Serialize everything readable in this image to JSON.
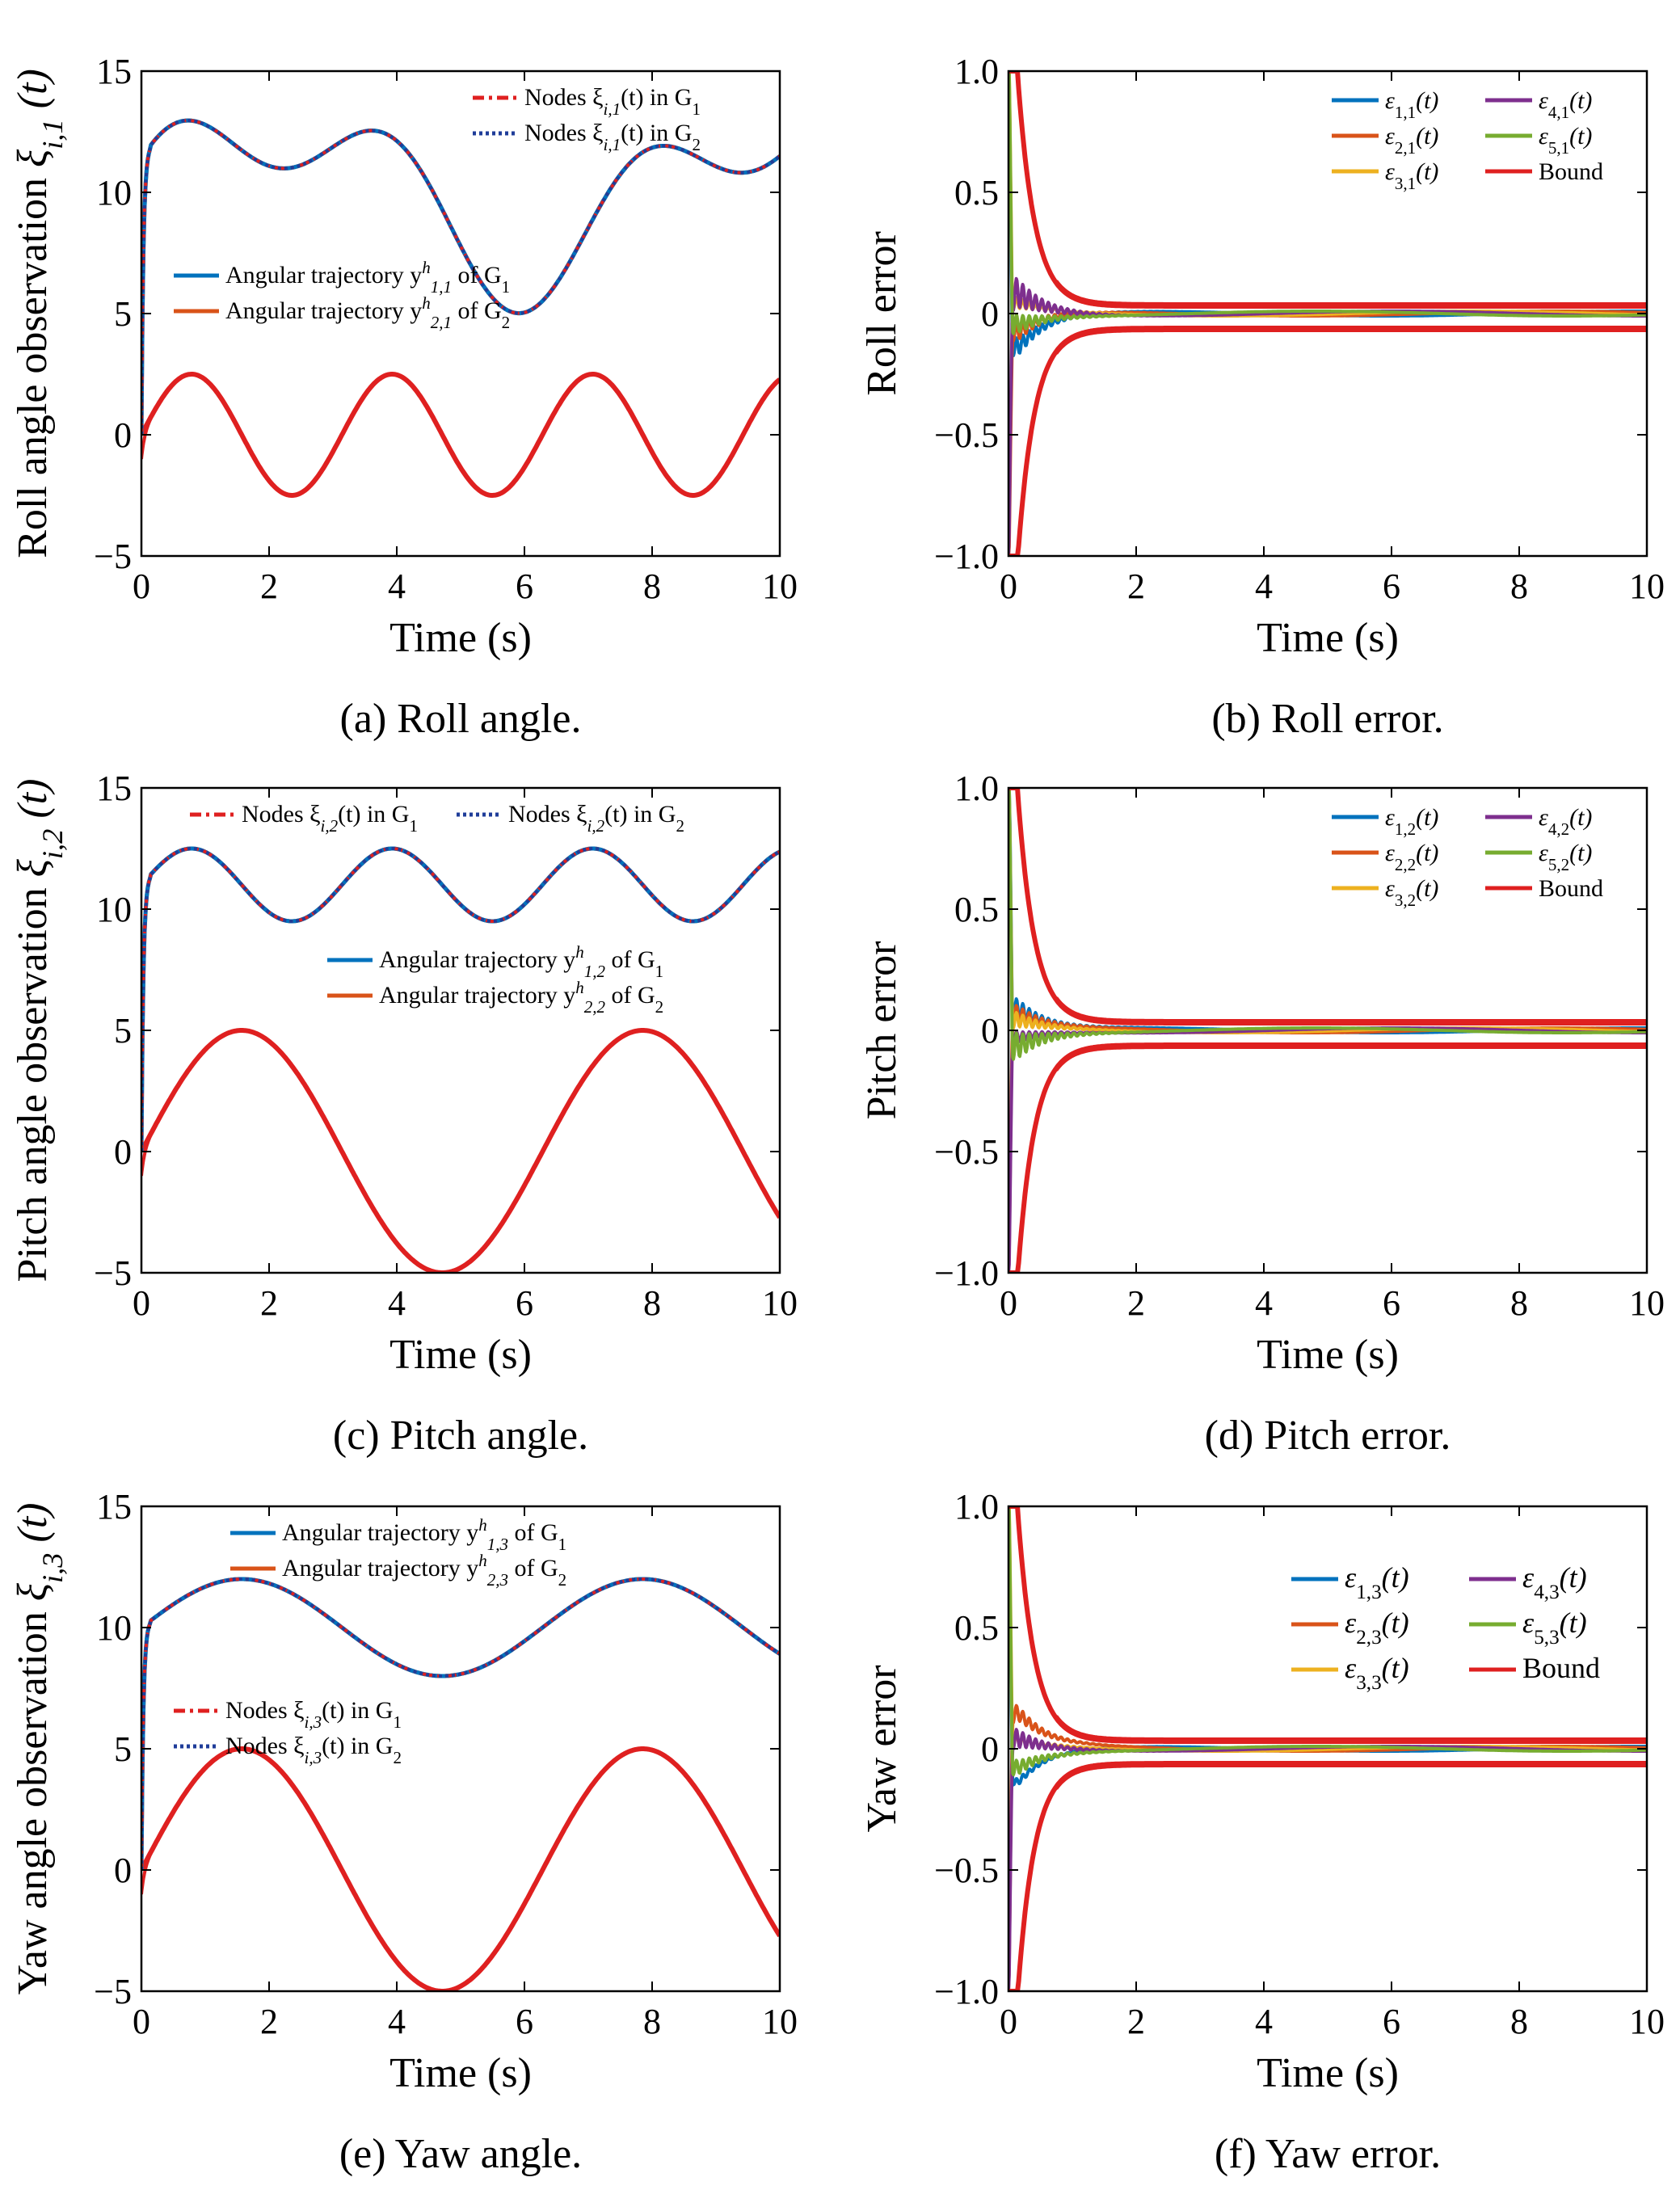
{
  "colors": {
    "blue": "#0072BD",
    "orange": "#D95319",
    "yellow": "#EDB120",
    "purple": "#7E2F8E",
    "green": "#77AC30",
    "red": "#DF2020",
    "navy": "#1F3D99"
  },
  "chart_data": [
    {
      "id": "a",
      "type": "line",
      "caption": "(a) Roll angle.",
      "xlabel": "Time (s)",
      "ylabel": "Roll angle observation",
      "ylabel_symbol": "ξ",
      "ylabel_sub": "i,1",
      "ylabel_arg": "(t)",
      "xlim": [
        0,
        10
      ],
      "ylim": [
        -5,
        15
      ],
      "xticks": [
        "0",
        "2",
        "4",
        "6",
        "8",
        "10"
      ],
      "yticks": [
        "−5",
        "0",
        "5",
        "10",
        "15"
      ],
      "traj": {
        "offset": 10,
        "terms": [
          [
            3.0,
            0.8,
            -0.1
          ],
          [
            2.0,
            1.7,
            1.0
          ]
        ]
      },
      "sig": {
        "offset": 0,
        "terms": [
          [
            2.5,
            2.0,
            0.0
          ]
        ]
      },
      "legends": [
        {
          "entries": [
            {
              "color": "red",
              "style": "dashdot",
              "text": "Nodes ξ",
              "sub": "i,1",
              "tail": "(t) in G",
              "tsub": "1"
            },
            {
              "color": "navy",
              "style": "dotted",
              "text": "Nodes ξ",
              "sub": "i,1",
              "tail": "(t) in G",
              "tsub": "2"
            }
          ]
        },
        {
          "entries": [
            {
              "color": "blue",
              "style": "solid",
              "text": "Angular trajectory y",
              "sup": "h",
              "sub": "1,1",
              "tail": " of G",
              "tsub": "1"
            },
            {
              "color": "orange",
              "style": "solid",
              "text": "Angular trajectory y",
              "sup": "h",
              "sub": "2,1",
              "tail": " of G",
              "tsub": "2"
            }
          ]
        }
      ]
    },
    {
      "id": "b",
      "type": "line",
      "caption": "(b) Roll error.",
      "xlabel": "Time (s)",
      "ylabel": "Roll error",
      "xlim": [
        0,
        10
      ],
      "ylim": [
        -1.0,
        1.0
      ],
      "xticks": [
        "0",
        "2",
        "4",
        "6",
        "8",
        "10"
      ],
      "yticks": [
        "−1.0",
        "−0.5",
        "0",
        "0.5",
        "1.0"
      ],
      "bound": {
        "a": 0.75,
        "b": 0.03,
        "k": 3.8
      },
      "series": [
        {
          "name": "ε",
          "sub": "1,1",
          "color": "blue",
          "a": -0.2,
          "osc": 0.05,
          "f": 10
        },
        {
          "name": "ε",
          "sub": "2,1",
          "color": "orange",
          "a": -0.12,
          "osc": 0.05,
          "f": 10
        },
        {
          "name": "ε",
          "sub": "3,1",
          "color": "yellow",
          "a": 0.05,
          "osc": 0.03,
          "f": 10
        },
        {
          "name": "ε",
          "sub": "4,1",
          "color": "purple",
          "a": 0.12,
          "osc": 0.08,
          "f": 10
        },
        {
          "name": "ε",
          "sub": "5,1",
          "color": "green",
          "a": -0.05,
          "osc": 0.05,
          "f": 10
        }
      ],
      "bound_label": "Bound"
    },
    {
      "id": "c",
      "type": "line",
      "caption": "(c) Pitch angle.",
      "xlabel": "Time (s)",
      "ylabel": "Pitch angle observation",
      "ylabel_symbol": "ξ",
      "ylabel_sub": "i,2",
      "ylabel_arg": "(t)",
      "xlim": [
        0,
        10
      ],
      "ylim": [
        -5,
        15
      ],
      "xticks": [
        "0",
        "2",
        "4",
        "6",
        "8",
        "10"
      ],
      "yticks": [
        "−5",
        "0",
        "5",
        "10",
        "15"
      ],
      "traj": {
        "offset": 11,
        "terms": [
          [
            1.5,
            2.0,
            0.0
          ]
        ]
      },
      "sig": {
        "offset": 0,
        "terms": [
          [
            5.0,
            1.0,
            0.0
          ]
        ]
      },
      "legends": [
        {
          "entries": [
            {
              "color": "red",
              "style": "dashdot",
              "text": "Nodes ξ",
              "sub": "i,2",
              "tail": "(t) in G",
              "tsub": "1"
            },
            {
              "color": "navy",
              "style": "dotted",
              "text": "Nodes ξ",
              "sub": "i,2",
              "tail": "(t) in G",
              "tsub": "2"
            }
          ]
        },
        {
          "entries": [
            {
              "color": "blue",
              "style": "solid",
              "text": "Angular trajectory y",
              "sup": "h",
              "sub": "1,2",
              "tail": " of G",
              "tsub": "1"
            },
            {
              "color": "orange",
              "style": "solid",
              "text": "Angular trajectory y",
              "sup": "h",
              "sub": "2,2",
              "tail": " of G",
              "tsub": "2"
            }
          ]
        }
      ]
    },
    {
      "id": "d",
      "type": "line",
      "caption": "(d) Pitch error.",
      "xlabel": "Time (s)",
      "ylabel": "Pitch error",
      "xlim": [
        0,
        10
      ],
      "ylim": [
        -1.0,
        1.0
      ],
      "xticks": [
        "0",
        "2",
        "4",
        "6",
        "8",
        "10"
      ],
      "yticks": [
        "−1.0",
        "−0.5",
        "0",
        "0.5",
        "1.0"
      ],
      "bound": {
        "a": 0.75,
        "b": 0.03,
        "k": 3.8
      },
      "series": [
        {
          "name": "ε",
          "sub": "1,2",
          "color": "blue",
          "a": 0.12,
          "osc": 0.06,
          "f": 10
        },
        {
          "name": "ε",
          "sub": "2,2",
          "color": "orange",
          "a": 0.08,
          "osc": 0.05,
          "f": 10
        },
        {
          "name": "ε",
          "sub": "3,2",
          "color": "yellow",
          "a": 0.05,
          "osc": 0.04,
          "f": 10
        },
        {
          "name": "ε",
          "sub": "4,2",
          "color": "purple",
          "a": -0.04,
          "osc": 0.03,
          "f": 10
        },
        {
          "name": "ε",
          "sub": "5,2",
          "color": "green",
          "a": -0.08,
          "osc": 0.07,
          "f": 10
        }
      ],
      "bound_label": "Bound"
    },
    {
      "id": "e",
      "type": "line",
      "caption": "(e) Yaw angle.",
      "xlabel": "Time (s)",
      "ylabel": "Yaw angle observation",
      "ylabel_symbol": "ξ",
      "ylabel_sub": "i,3",
      "ylabel_arg": "(t)",
      "xlim": [
        0,
        10
      ],
      "ylim": [
        -5,
        15
      ],
      "xticks": [
        "0",
        "2",
        "4",
        "6",
        "8",
        "10"
      ],
      "yticks": [
        "−5",
        "0",
        "5",
        "10",
        "15"
      ],
      "traj": {
        "offset": 10,
        "terms": [
          [
            2.0,
            1.0,
            0.0
          ]
        ]
      },
      "sig": {
        "offset": 0,
        "terms": [
          [
            5.0,
            1.0,
            0.0
          ]
        ]
      },
      "legends": [
        {
          "entries": [
            {
              "color": "blue",
              "style": "solid",
              "text": "Angular trajectory y",
              "sup": "h",
              "sub": "1,3",
              "tail": " of G",
              "tsub": "1"
            },
            {
              "color": "orange",
              "style": "solid",
              "text": "Angular trajectory y",
              "sup": "h",
              "sub": "2,3",
              "tail": " of G",
              "tsub": "2"
            }
          ]
        },
        {
          "entries": [
            {
              "color": "red",
              "style": "dashdot",
              "text": "Nodes ξ",
              "sub": "i,3",
              "tail": "(t) in G",
              "tsub": "1"
            },
            {
              "color": "navy",
              "style": "dotted",
              "text": "Nodes ξ",
              "sub": "i,3",
              "tail": "(t) in G",
              "tsub": "2"
            }
          ]
        }
      ]
    },
    {
      "id": "f",
      "type": "line",
      "caption": "(f) Yaw error.",
      "xlabel": "Time (s)",
      "ylabel": "Yaw error",
      "xlim": [
        0,
        10
      ],
      "ylim": [
        -1.0,
        1.0
      ],
      "xticks": [
        "0",
        "2",
        "4",
        "6",
        "8",
        "10"
      ],
      "yticks": [
        "−1.0",
        "−0.5",
        "0",
        "0.5",
        "1.0"
      ],
      "bound": {
        "a": 0.75,
        "b": 0.03,
        "k": 3.8
      },
      "series": [
        {
          "name": "ε",
          "sub": "1,3",
          "color": "blue",
          "a": -0.2,
          "osc": 0.02,
          "f": 10
        },
        {
          "name": "ε",
          "sub": "2,3",
          "color": "orange",
          "a": 0.2,
          "osc": 0.04,
          "f": 10
        },
        {
          "name": "ε",
          "sub": "3,3",
          "color": "yellow",
          "a": 0.04,
          "osc": 0.03,
          "f": 10
        },
        {
          "name": "ε",
          "sub": "4,3",
          "color": "purple",
          "a": 0.06,
          "osc": 0.05,
          "f": 10
        },
        {
          "name": "ε",
          "sub": "5,3",
          "color": "green",
          "a": -0.1,
          "osc": 0.04,
          "f": 10
        }
      ],
      "bound_label": "Bound"
    }
  ]
}
